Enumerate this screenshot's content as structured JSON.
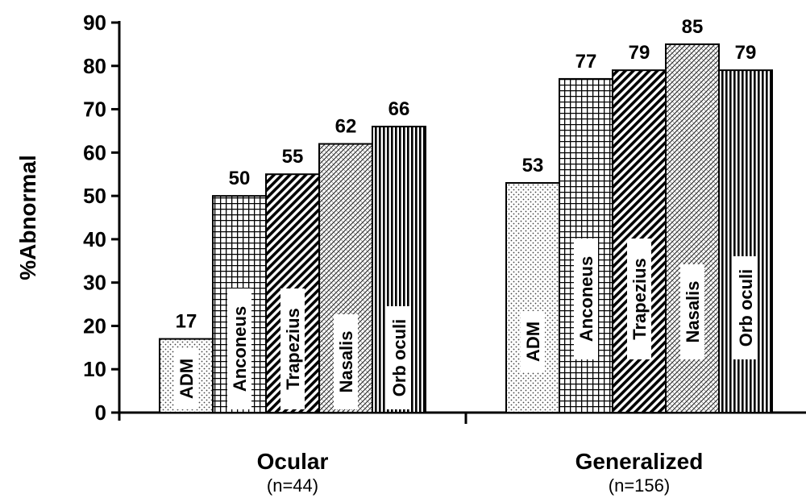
{
  "chart_data": {
    "type": "bar",
    "ylabel": "%Abnormal",
    "ylim": [
      0,
      90
    ],
    "yticks": [
      "0",
      "10",
      "20",
      "30",
      "40",
      "50",
      "60",
      "70",
      "80",
      "90"
    ],
    "grid": false,
    "groups": [
      {
        "name": "Ocular",
        "n_label": "(n=44)",
        "bars": [
          {
            "label": "ADM",
            "value": 17,
            "value_label": "17",
            "pattern": "dots"
          },
          {
            "label": "Anconeus",
            "value": 50,
            "value_label": "50",
            "pattern": "grid"
          },
          {
            "label": "Trapezius",
            "value": 55,
            "value_label": "55",
            "pattern": "diagonal"
          },
          {
            "label": "Nasalis",
            "value": 62,
            "value_label": "62",
            "pattern": "crosshatch"
          },
          {
            "label": "Orb oculi",
            "value": 66,
            "value_label": "66",
            "pattern": "vertical"
          }
        ]
      },
      {
        "name": "Generalized",
        "n_label": "(n=156)",
        "bars": [
          {
            "label": "ADM",
            "value": 53,
            "value_label": "53",
            "pattern": "dots"
          },
          {
            "label": "Anconeus",
            "value": 77,
            "value_label": "77",
            "pattern": "grid"
          },
          {
            "label": "Trapezius",
            "value": 79,
            "value_label": "79",
            "pattern": "diagonal"
          },
          {
            "label": "Nasalis",
            "value": 85,
            "value_label": "85",
            "pattern": "crosshatch"
          },
          {
            "label": "Orb oculi",
            "value": 79,
            "value_label": "79",
            "pattern": "vertical"
          }
        ]
      }
    ]
  }
}
